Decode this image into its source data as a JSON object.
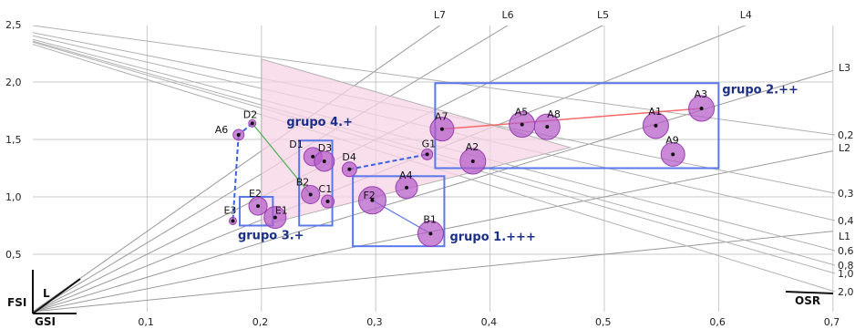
{
  "chart_data": {
    "type": "scatter",
    "title": "",
    "xlabel": "GSI",
    "ylabel": "FSI",
    "xlim": [
      0,
      0.7
    ],
    "ylim": [
      0,
      2.5
    ],
    "x_ticks": [
      {
        "v": 0.1,
        "label": "0,1"
      },
      {
        "v": 0.2,
        "label": "0,2"
      },
      {
        "v": 0.3,
        "label": "0,3"
      },
      {
        "v": 0.4,
        "label": "0,4"
      },
      {
        "v": 0.5,
        "label": "0,5"
      },
      {
        "v": 0.6,
        "label": "0,6"
      },
      {
        "v": 0.7,
        "label": "0,7"
      }
    ],
    "y_ticks": [
      {
        "v": 0.5,
        "label": "0,5"
      },
      {
        "v": 1.0,
        "label": "1,0"
      },
      {
        "v": 1.5,
        "label": "1,5"
      },
      {
        "v": 2.0,
        "label": "2,0"
      },
      {
        "v": 2.5,
        "label": "2,5"
      }
    ],
    "l_lines": [
      {
        "label": "L7",
        "l": 7
      },
      {
        "label": "L6",
        "l": 6
      },
      {
        "label": "L5",
        "l": 5
      },
      {
        "label": "L4",
        "l": 4
      },
      {
        "label": "L3",
        "l": 3
      },
      {
        "label": "L2",
        "l": 2
      },
      {
        "label": "L1",
        "l": 1
      }
    ],
    "osr_lines": [
      {
        "label": "0,2",
        "osr": 0.2
      },
      {
        "label": "0,3",
        "osr": 0.3
      },
      {
        "label": "0,4",
        "osr": 0.4
      },
      {
        "label": "0,6",
        "osr": 0.6
      },
      {
        "label": "0,8",
        "osr": 0.8
      },
      {
        "label": "1,0",
        "osr": 1.0
      },
      {
        "label": "2,0",
        "osr": 2.0
      }
    ],
    "osr_name": "OSR",
    "points": [
      {
        "label": "A7",
        "x": 0.358,
        "y": 1.59,
        "r": 13
      },
      {
        "label": "A5",
        "x": 0.428,
        "y": 1.63,
        "r": 14
      },
      {
        "label": "A8",
        "x": 0.45,
        "y": 1.61,
        "r": 14
      },
      {
        "label": "A3",
        "x": 0.585,
        "y": 1.77,
        "r": 14
      },
      {
        "label": "A1",
        "x": 0.545,
        "y": 1.62,
        "r": 14
      },
      {
        "label": "A9",
        "x": 0.56,
        "y": 1.37,
        "r": 13
      },
      {
        "label": "A2",
        "x": 0.385,
        "y": 1.31,
        "r": 14
      },
      {
        "label": "A4",
        "x": 0.327,
        "y": 1.08,
        "r": 12
      },
      {
        "label": "B1",
        "x": 0.348,
        "y": 0.68,
        "r": 14
      },
      {
        "label": "B2",
        "x": 0.243,
        "y": 1.02,
        "r": 10
      },
      {
        "label": "C1",
        "x": 0.258,
        "y": 0.96,
        "r": 7
      },
      {
        "label": "D1",
        "x": 0.245,
        "y": 1.35,
        "r": 10
      },
      {
        "label": "D3",
        "x": 0.255,
        "y": 1.31,
        "r": 11
      },
      {
        "label": "D4",
        "x": 0.277,
        "y": 1.24,
        "r": 8
      },
      {
        "label": "G1",
        "x": 0.345,
        "y": 1.37,
        "r": 6
      },
      {
        "label": "D2",
        "x": 0.192,
        "y": 1.64,
        "r": 4
      },
      {
        "label": "A6",
        "x": 0.18,
        "y": 1.54,
        "r": 6
      },
      {
        "label": "E3",
        "x": 0.175,
        "y": 0.79,
        "r": 4
      },
      {
        "label": "E2",
        "x": 0.197,
        "y": 0.92,
        "r": 10
      },
      {
        "label": "E1",
        "x": 0.212,
        "y": 0.82,
        "r": 12
      },
      {
        "label": "F2",
        "x": 0.297,
        "y": 0.97,
        "r": 15
      }
    ],
    "groups": [
      {
        "name": "grupo 1.+++",
        "x0": 0.28,
        "x1": 0.36,
        "y0": 0.57,
        "y1": 1.18
      },
      {
        "name": "grupo 2.++",
        "x0": 0.352,
        "x1": 0.6,
        "y0": 1.25,
        "y1": 1.99
      },
      {
        "name": "grupo 3.+",
        "x0": 0.181,
        "x1": 0.21,
        "y0": 0.75,
        "y1": 1.0
      },
      {
        "name": "grupo 4.+",
        "x0": 0.233,
        "x1": 0.262,
        "y0": 0.75,
        "y1": 1.49
      }
    ],
    "colors": {
      "bubble": "#b45cc8",
      "bubble_stroke": "#9a3fb0",
      "group_box": "#5a78ea",
      "group_label": "#1b2f86",
      "triangle_fill": "#f7d3e6",
      "trend_red": "#f36b6b",
      "trend_green": "#4caf50",
      "dashed_blue": "#3b63e0"
    }
  }
}
